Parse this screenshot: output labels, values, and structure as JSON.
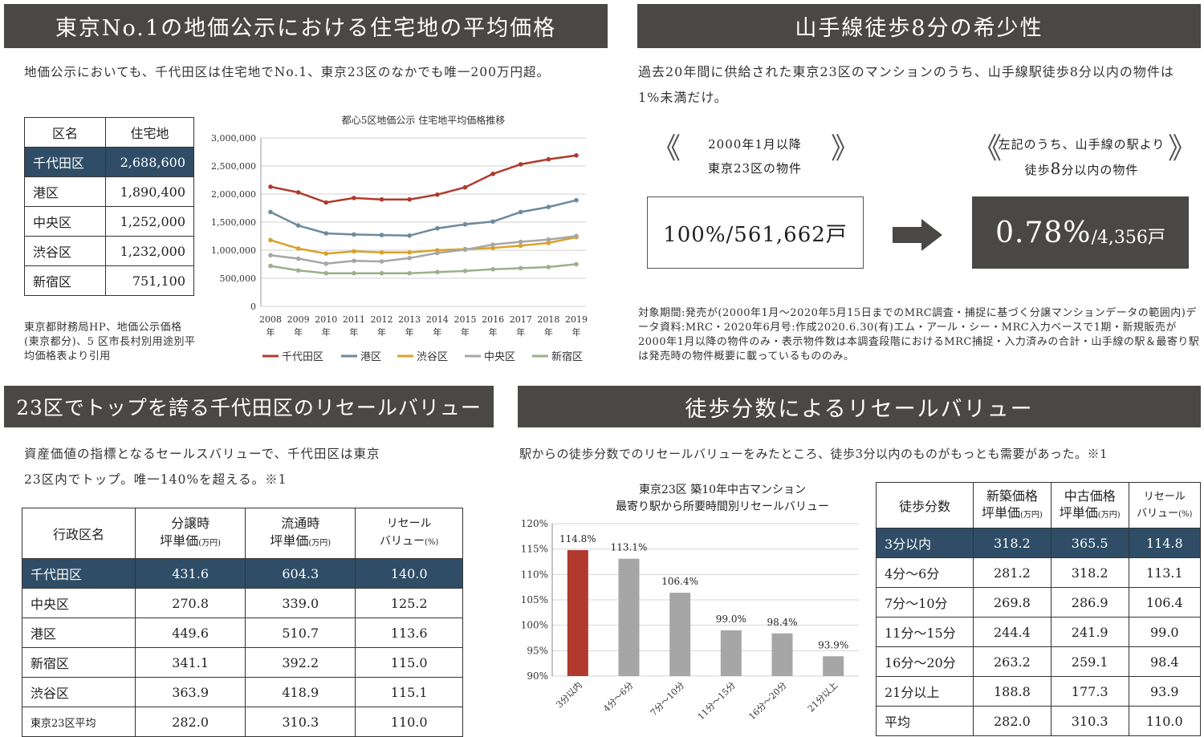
{
  "sec1": {
    "title": "東京No.1の地価公示における住宅地の平均価格",
    "intro": "地価公示においても、千代田区は住宅地でNo.1、東京23区のなかでも唯一200万円超。",
    "table": {
      "headers": [
        "区名",
        "住宅地"
      ],
      "rows": [
        {
          "ward": "千代田区",
          "value": "2,688,600"
        },
        {
          "ward": "港区",
          "value": "1,890,400"
        },
        {
          "ward": "中央区",
          "value": "1,252,000"
        },
        {
          "ward": "渋谷区",
          "value": "1,232,000"
        },
        {
          "ward": "新宿区",
          "value": "751,100"
        }
      ]
    },
    "source_note": "東京都財務局HP、地価公示価格(東京都分)、5 区市長村別用途別平均価格表より引用"
  },
  "sec2": {
    "title": "山手線徒歩8分の希少性",
    "intro": "過去20年間に供給された東京23区のマンションのうち、山手線駅徒歩8分以内の物件は1%未満だけ。",
    "left_label_1": "2000年1月以降",
    "left_label_2": "東京23区の物件",
    "right_label_1": "左記のうち、山手線の駅より",
    "right_label_2_pre": "徒歩",
    "right_label_2_num": "8",
    "right_label_2_post": "分以内の物件",
    "left_value": "100%/561,662戸",
    "right_value_big": "0.78%",
    "right_value_small": "/4,356戸",
    "note": "対象期間:発売が(2000年1月～2020年5月15日までのMRC調査・捕捉に基づく分譲マンションデータの範囲内)データ資料:MRC・2020年6月号:作成2020.6.30(有)エム・アール・シー・MRC入力ベースで1期・新規販売が2000年1月以降の物件のみ・表示物件数は本調査段階におけるMRC捕捉・入力済みの合計・山手線の駅＆最寄り駅は発売時の物件概要に載っているもののみ。"
  },
  "sec3": {
    "title": "23区でトップを誇る千代田区のリセールバリュー",
    "intro_1": "資産価値の指標となるセールスバリューで、千代田区は東京",
    "intro_2": "23区内でトップ。唯一140%を超える。※1",
    "headers": {
      "ward": "行政区名",
      "pre_1": "分譲時",
      "pre_2": "坪単価",
      "pre_unit": "(万円)",
      "cur_1": "流通時",
      "cur_2": "坪単価",
      "cur_unit": "(万円)",
      "rv_1": "リセール",
      "rv_2": "バリュー",
      "rv_unit": "(%)"
    },
    "rows": [
      {
        "ward": "千代田区",
        "pre": "431.6",
        "cur": "604.3",
        "rv": "140.0"
      },
      {
        "ward": "中央区",
        "pre": "270.8",
        "cur": "339.0",
        "rv": "125.2"
      },
      {
        "ward": "港区",
        "pre": "449.6",
        "cur": "510.7",
        "rv": "113.6"
      },
      {
        "ward": "新宿区",
        "pre": "341.1",
        "cur": "392.2",
        "rv": "115.0"
      },
      {
        "ward": "渋谷区",
        "pre": "363.9",
        "cur": "418.9",
        "rv": "115.1"
      },
      {
        "ward": "東京23区平均",
        "pre": "282.0",
        "cur": "310.3",
        "rv": "110.0"
      }
    ]
  },
  "sec4": {
    "title": "徒歩分数によるリセールバリュー",
    "intro": "駅からの徒歩分数でのリセールバリューをみたところ、徒歩3分以内のものがもっとも需要があった。※1",
    "headers": {
      "walk": "徒歩分数",
      "new_1": "新築価格",
      "new_2": "坪単価",
      "new_unit": "(万円)",
      "used_1": "中古価格",
      "used_2": "坪単価",
      "used_unit": "(万円)",
      "rv_1": "リセール",
      "rv_2": "バリュー",
      "rv_unit": "(%)"
    },
    "rows": [
      {
        "walk": "3分以内",
        "new": "318.2",
        "used": "365.5",
        "rv": "114.8"
      },
      {
        "walk": "4分～6分",
        "new": "281.2",
        "used": "318.2",
        "rv": "113.1"
      },
      {
        "walk": "7分～10分",
        "new": "269.8",
        "used": "286.9",
        "rv": "106.4"
      },
      {
        "walk": "11分～15分",
        "new": "244.4",
        "used": "241.9",
        "rv": "99.0"
      },
      {
        "walk": "16分～20分",
        "new": "263.2",
        "used": "259.1",
        "rv": "98.4"
      },
      {
        "walk": "21分以上",
        "new": "188.8",
        "used": "177.3",
        "rv": "93.9"
      },
      {
        "walk": "平均",
        "new": "282.0",
        "used": "310.3",
        "rv": "110.0"
      }
    ]
  },
  "colors": {
    "banner": "#4a4846",
    "highlight": "#2f4d66",
    "chiyoda": "#b03a2e",
    "minato": "#6d8a9b",
    "shibuya": "#d9a228",
    "chuo": "#a6a6a6",
    "shinjuku": "#9cae8c",
    "bar_gray": "#a6a6a6"
  },
  "chart_data": [
    {
      "type": "line",
      "title": "都心5区地価公示 住宅地平均価格推移",
      "x": [
        "2008",
        "2009",
        "2010",
        "2011",
        "2012",
        "2013",
        "2014",
        "2015",
        "2016",
        "2017",
        "2018",
        "2019"
      ],
      "x_suffix": "年",
      "ylim": [
        0,
        3000000
      ],
      "yticks": [
        "0",
        "500,000",
        "1,000,000",
        "1,500,000",
        "2,000,000",
        "2,500,000",
        "3,000,000"
      ],
      "grid": true,
      "legend": "bottom",
      "series": [
        {
          "name": "千代田区",
          "color": "#b03a2e",
          "values": [
            2130000,
            2030000,
            1850000,
            1930000,
            1905000,
            1905000,
            1990000,
            2120000,
            2360000,
            2530000,
            2620000,
            2688600
          ]
        },
        {
          "name": "港区",
          "color": "#6d8a9b",
          "values": [
            1680000,
            1440000,
            1300000,
            1280000,
            1270000,
            1260000,
            1390000,
            1460000,
            1510000,
            1680000,
            1770000,
            1890400
          ]
        },
        {
          "name": "渋谷区",
          "color": "#d9a228",
          "values": [
            1180000,
            1030000,
            940000,
            980000,
            960000,
            960000,
            1000000,
            1020000,
            1040000,
            1080000,
            1130000,
            1232000
          ]
        },
        {
          "name": "中央区",
          "color": "#a6a6a6",
          "values": [
            910000,
            850000,
            760000,
            810000,
            800000,
            860000,
            950000,
            1010000,
            1100000,
            1150000,
            1190000,
            1252000
          ]
        },
        {
          "name": "新宿区",
          "color": "#9cae8c",
          "values": [
            720000,
            640000,
            590000,
            590000,
            590000,
            590000,
            610000,
            630000,
            660000,
            680000,
            700000,
            751100
          ]
        }
      ]
    },
    {
      "type": "bar",
      "title_1": "東京23区 築10年中古マンション",
      "title_2": "最寄り駅から所要時間別リセールバリュー",
      "categories": [
        "3分以内",
        "4分～6分",
        "7分～10分",
        "11分～15分",
        "16分～20分",
        "21分以上"
      ],
      "values": [
        114.8,
        113.1,
        106.4,
        99.0,
        98.4,
        93.9
      ],
      "labels": [
        "114.8%",
        "113.1%",
        "106.4%",
        "99.0%",
        "98.4%",
        "93.9%"
      ],
      "ylim": [
        90,
        120
      ],
      "yticks": [
        "90%",
        "95%",
        "100%",
        "105%",
        "110%",
        "115%",
        "120%"
      ],
      "grid": true
    }
  ]
}
